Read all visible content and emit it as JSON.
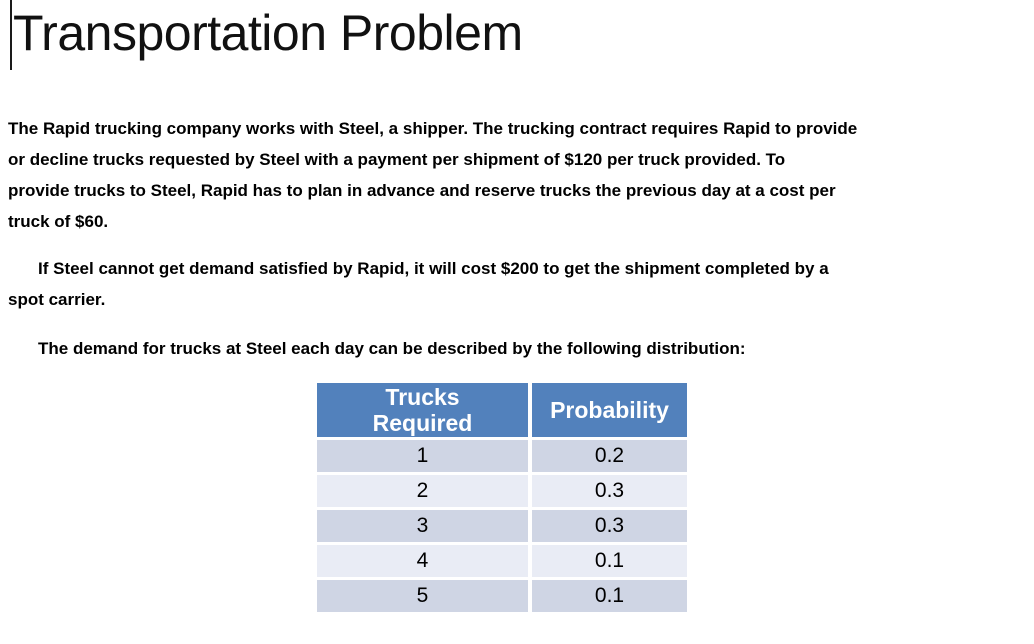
{
  "document": {
    "title": "Transportation Problem",
    "paragraphs": {
      "p1": {
        "lines": [
          "The Rapid trucking company works with Steel, a shipper. The trucking contract requires Rapid to provide",
          "or decline trucks requested by Steel with a payment per shipment of $120 per truck provided. To",
          "provide trucks to Steel, Rapid has to plan in advance and reserve trucks the previous day at a cost per",
          "truck of $60."
        ]
      },
      "p2": {
        "lines": [
          "If Steel cannot get demand satisfied by Rapid, it will cost $200 to get the shipment completed by a",
          "spot carrier."
        ]
      },
      "p3": {
        "lines": [
          "The demand for trucks at Steel each day can be described by the following distribution:"
        ]
      }
    },
    "table": {
      "col1_header": "Trucks\nRequired",
      "col2_header": "Probability",
      "rows": [
        {
          "trucks": "1",
          "probability": "0.2"
        },
        {
          "trucks": "2",
          "probability": "0.3"
        },
        {
          "trucks": "3",
          "probability": "0.3"
        },
        {
          "trucks": "4",
          "probability": "0.1"
        },
        {
          "trucks": "5",
          "probability": "0.1"
        }
      ],
      "colors": {
        "header_bg": "#5281BC",
        "header_text": "#FFFFFF",
        "row_dark": "#CFD5E4",
        "row_light": "#E9ECF5"
      }
    }
  }
}
